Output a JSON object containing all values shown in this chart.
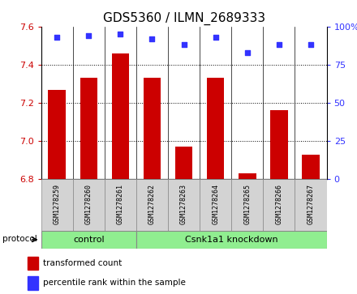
{
  "title": "GDS5360 / ILMN_2689333",
  "samples": [
    "GSM1278259",
    "GSM1278260",
    "GSM1278261",
    "GSM1278262",
    "GSM1278263",
    "GSM1278264",
    "GSM1278265",
    "GSM1278266",
    "GSM1278267"
  ],
  "bar_values": [
    7.27,
    7.33,
    7.46,
    7.33,
    6.97,
    7.33,
    6.83,
    7.16,
    6.93
  ],
  "percentile_values": [
    93,
    94,
    95,
    92,
    88,
    93,
    83,
    88,
    88
  ],
  "y_min": 6.8,
  "y_max": 7.6,
  "y_ticks": [
    6.8,
    7.0,
    7.2,
    7.4,
    7.6
  ],
  "right_y_ticks": [
    0,
    25,
    50,
    75,
    100
  ],
  "bar_color": "#cc0000",
  "dot_color": "#3333ff",
  "control_samples": 3,
  "control_label": "control",
  "knockdown_label": "Csnk1a1 knockdown",
  "protocol_label": "protocol",
  "legend_bar_label": "transformed count",
  "legend_dot_label": "percentile rank within the sample",
  "group_bg_color": "#d3d3d3",
  "protocol_box_color": "#90ee90",
  "title_fontsize": 11,
  "tick_fontsize": 8,
  "label_fontsize": 8
}
